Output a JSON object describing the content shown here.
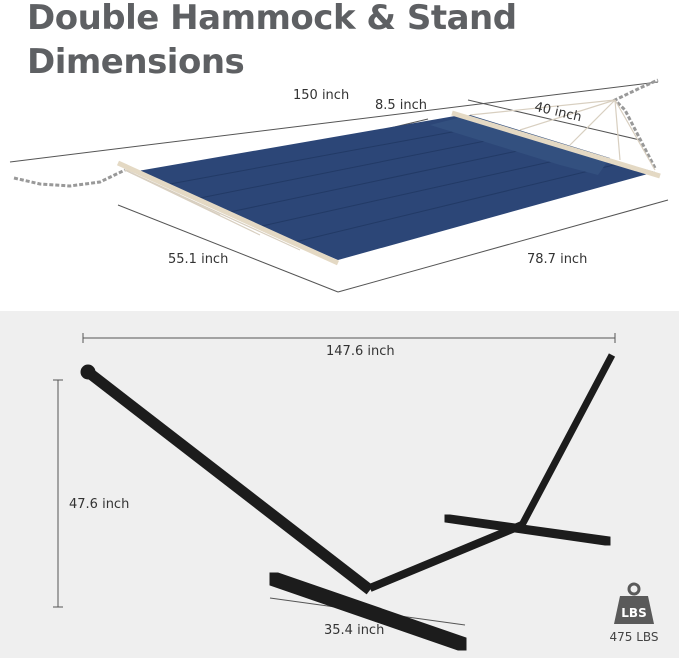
{
  "title": {
    "line1": "Double Hammock & Stand",
    "line2": "Dimensions"
  },
  "hammock": {
    "length": "150 inch",
    "pillow_depth": "8.5 inch",
    "pillow_width": "40 inch",
    "width": "55.1 inch",
    "bed_length": "78.7 inch"
  },
  "stand": {
    "length": "147.6 inch",
    "height": "47.6 inch",
    "base_width": "35.4 inch"
  },
  "capacity": {
    "icon": "weight-icon",
    "icon_label": "LBS",
    "value": "475 LBS"
  },
  "colors": {
    "fabric": "#2c4677",
    "stand": "#1c1c1c",
    "title": "#5e6063",
    "bottom_bg": "#efefef"
  }
}
